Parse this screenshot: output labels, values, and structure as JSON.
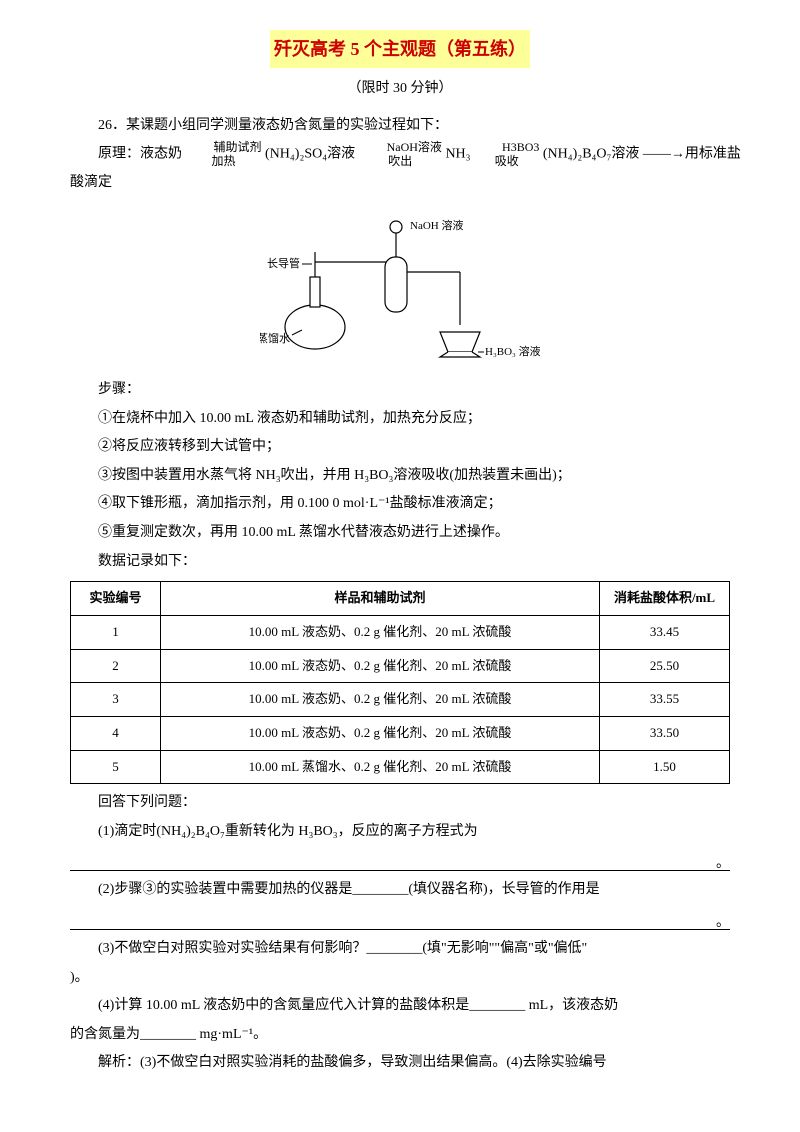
{
  "title": "歼灭高考 5 个主观题（第五练）",
  "subtitle": "（限时 30 分钟）",
  "q26_intro": "26．某课题小组同学测量液态奶含氮量的实验过程如下：",
  "principle_label": "原理：液态奶",
  "principle_text1": "辅助试剂",
  "principle_text2": "加热",
  "principle_chem1": "(NH₄)₂SO₄溶液",
  "principle_text3": "NaOH溶液",
  "principle_text4": "吹出",
  "principle_chem2": "NH₃",
  "principle_text5": "H3BO3",
  "principle_text6": "吸收",
  "principle_chem3": "(NH₄)₂B₄O₇溶液 ——→用标准盐",
  "principle_end": "酸滴定",
  "diagram": {
    "label_naoh": "NaOH 溶液",
    "label_tube": "长导管",
    "label_flask": "蒸馏水",
    "label_beaker": "H₃BO₃ 溶液"
  },
  "steps_label": "步骤：",
  "step1": "①在烧杯中加入 10.00 mL 液态奶和辅助试剂，加热充分反应；",
  "step2": "②将反应液转移到大试管中；",
  "step3": "③按图中装置用水蒸气将 NH₃吹出，并用 H₃BO₃溶液吸收(加热装置未画出)；",
  "step4": "④取下锥形瓶，滴加指示剂，用 0.100 0 mol·L⁻¹盐酸标准液滴定；",
  "step5": "⑤重复测定数次，再用 10.00 mL 蒸馏水代替液态奶进行上述操作。",
  "data_label": "数据记录如下：",
  "table": {
    "headers": [
      "实验编号",
      "样品和辅助试剂",
      "消耗盐酸体积/mL"
    ],
    "rows": [
      [
        "1",
        "10.00 mL 液态奶、0.2 g 催化剂、20 mL 浓硫酸",
        "33.45"
      ],
      [
        "2",
        "10.00 mL 液态奶、0.2 g 催化剂、20 mL 浓硫酸",
        "25.50"
      ],
      [
        "3",
        "10.00 mL 液态奶、0.2 g 催化剂、20 mL 浓硫酸",
        "33.55"
      ],
      [
        "4",
        "10.00 mL 液态奶、0.2 g 催化剂、20 mL 浓硫酸",
        "33.50"
      ],
      [
        "5",
        "10.00 mL 蒸馏水、0.2 g 催化剂、20 mL 浓硫酸",
        "1.50"
      ]
    ]
  },
  "answer_label": "回答下列问题：",
  "q1": "(1)滴定时(NH₄)₂B₄O₇重新转化为 H₃BO₃，反应的离子方程式为",
  "q2": "(2)步骤③的实验装置中需要加热的仪器是________(填仪器名称)，长导管的作用是",
  "q3_a": "(3)不做空白对照实验对实验结果有何影响？________(填\"无影响\"\"偏高\"或\"偏低\"",
  "q3_b": ")。",
  "q4_a": "(4)计算 10.00 mL 液态奶中的含氮量应代入计算的盐酸体积是________ mL，该液态奶",
  "q4_b": "的含氮量为________ mg·mL⁻¹。",
  "explain": "解析：(3)不做空白对照实验消耗的盐酸偏多，导致测出结果偏高。(4)去除实验编号"
}
